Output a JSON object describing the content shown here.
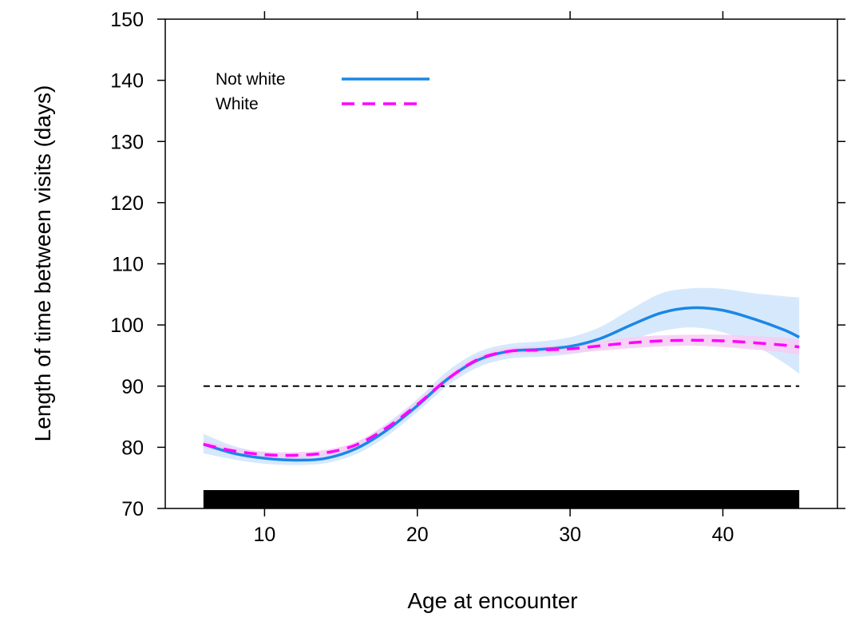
{
  "chart_data": {
    "type": "line",
    "title": "",
    "xlabel": "Age at encounter",
    "ylabel": "Length of time between visits (days)",
    "xlim": [
      3.5,
      47.5
    ],
    "ylim": [
      70,
      150
    ],
    "x_ticks": [
      10,
      20,
      30,
      40
    ],
    "y_ticks": [
      70,
      80,
      90,
      100,
      110,
      120,
      130,
      140,
      150
    ],
    "legend_position": "top-left",
    "grid": false,
    "reference_line": {
      "y": 90,
      "style": "dashed",
      "color": "#000000"
    },
    "rug_bar": {
      "x_from": 6,
      "x_to": 45,
      "color": "#000000"
    },
    "series": [
      {
        "name": "Not white",
        "color": "#1a87e6",
        "band_color": "#cfe5fb",
        "line_style": "solid",
        "x": [
          6,
          8,
          10,
          12,
          14,
          16,
          18,
          20,
          22,
          24,
          26,
          28,
          30,
          32,
          34,
          36,
          38,
          40,
          42,
          44,
          45
        ],
        "y": [
          80.5,
          79.0,
          78.2,
          77.9,
          78.2,
          79.8,
          82.8,
          86.8,
          91.2,
          94.3,
          95.7,
          96.0,
          96.5,
          97.8,
          100.0,
          102.0,
          102.8,
          102.4,
          101.0,
          99.2,
          98.0
        ],
        "lower": [
          79.0,
          78.0,
          77.3,
          77.1,
          77.4,
          78.9,
          81.8,
          85.8,
          90.1,
          93.1,
          94.5,
          94.8,
          95.2,
          96.1,
          97.6,
          99.0,
          99.6,
          98.8,
          96.8,
          93.8,
          92.0
        ],
        "upper": [
          82.2,
          80.2,
          79.2,
          78.8,
          79.2,
          80.8,
          83.9,
          87.9,
          92.5,
          95.6,
          96.9,
          97.3,
          98.0,
          99.7,
          102.6,
          105.2,
          106.0,
          105.9,
          105.2,
          104.7,
          104.5
        ]
      },
      {
        "name": "White",
        "color": "#ff00ff",
        "band_color": "#f6ccf3",
        "line_style": "dashed",
        "x": [
          6,
          8,
          10,
          12,
          14,
          16,
          18,
          20,
          22,
          24,
          26,
          28,
          30,
          32,
          34,
          36,
          38,
          40,
          42,
          44,
          45
        ],
        "y": [
          80.5,
          79.4,
          78.8,
          78.7,
          79.1,
          80.4,
          83.2,
          87.0,
          91.2,
          94.4,
          95.7,
          95.9,
          96.1,
          96.6,
          97.1,
          97.4,
          97.5,
          97.4,
          97.1,
          96.7,
          96.4
        ],
        "lower": [
          79.9,
          78.9,
          78.3,
          78.2,
          78.6,
          79.9,
          82.7,
          86.4,
          90.6,
          93.8,
          95.1,
          95.3,
          95.4,
          95.8,
          96.2,
          96.5,
          96.6,
          96.4,
          96.0,
          95.5,
          95.1
        ],
        "upper": [
          81.1,
          79.9,
          79.3,
          79.2,
          79.6,
          80.9,
          83.7,
          87.6,
          91.8,
          95.0,
          96.3,
          96.5,
          96.8,
          97.4,
          98.0,
          98.3,
          98.4,
          98.4,
          98.2,
          97.9,
          97.7
        ]
      }
    ]
  }
}
